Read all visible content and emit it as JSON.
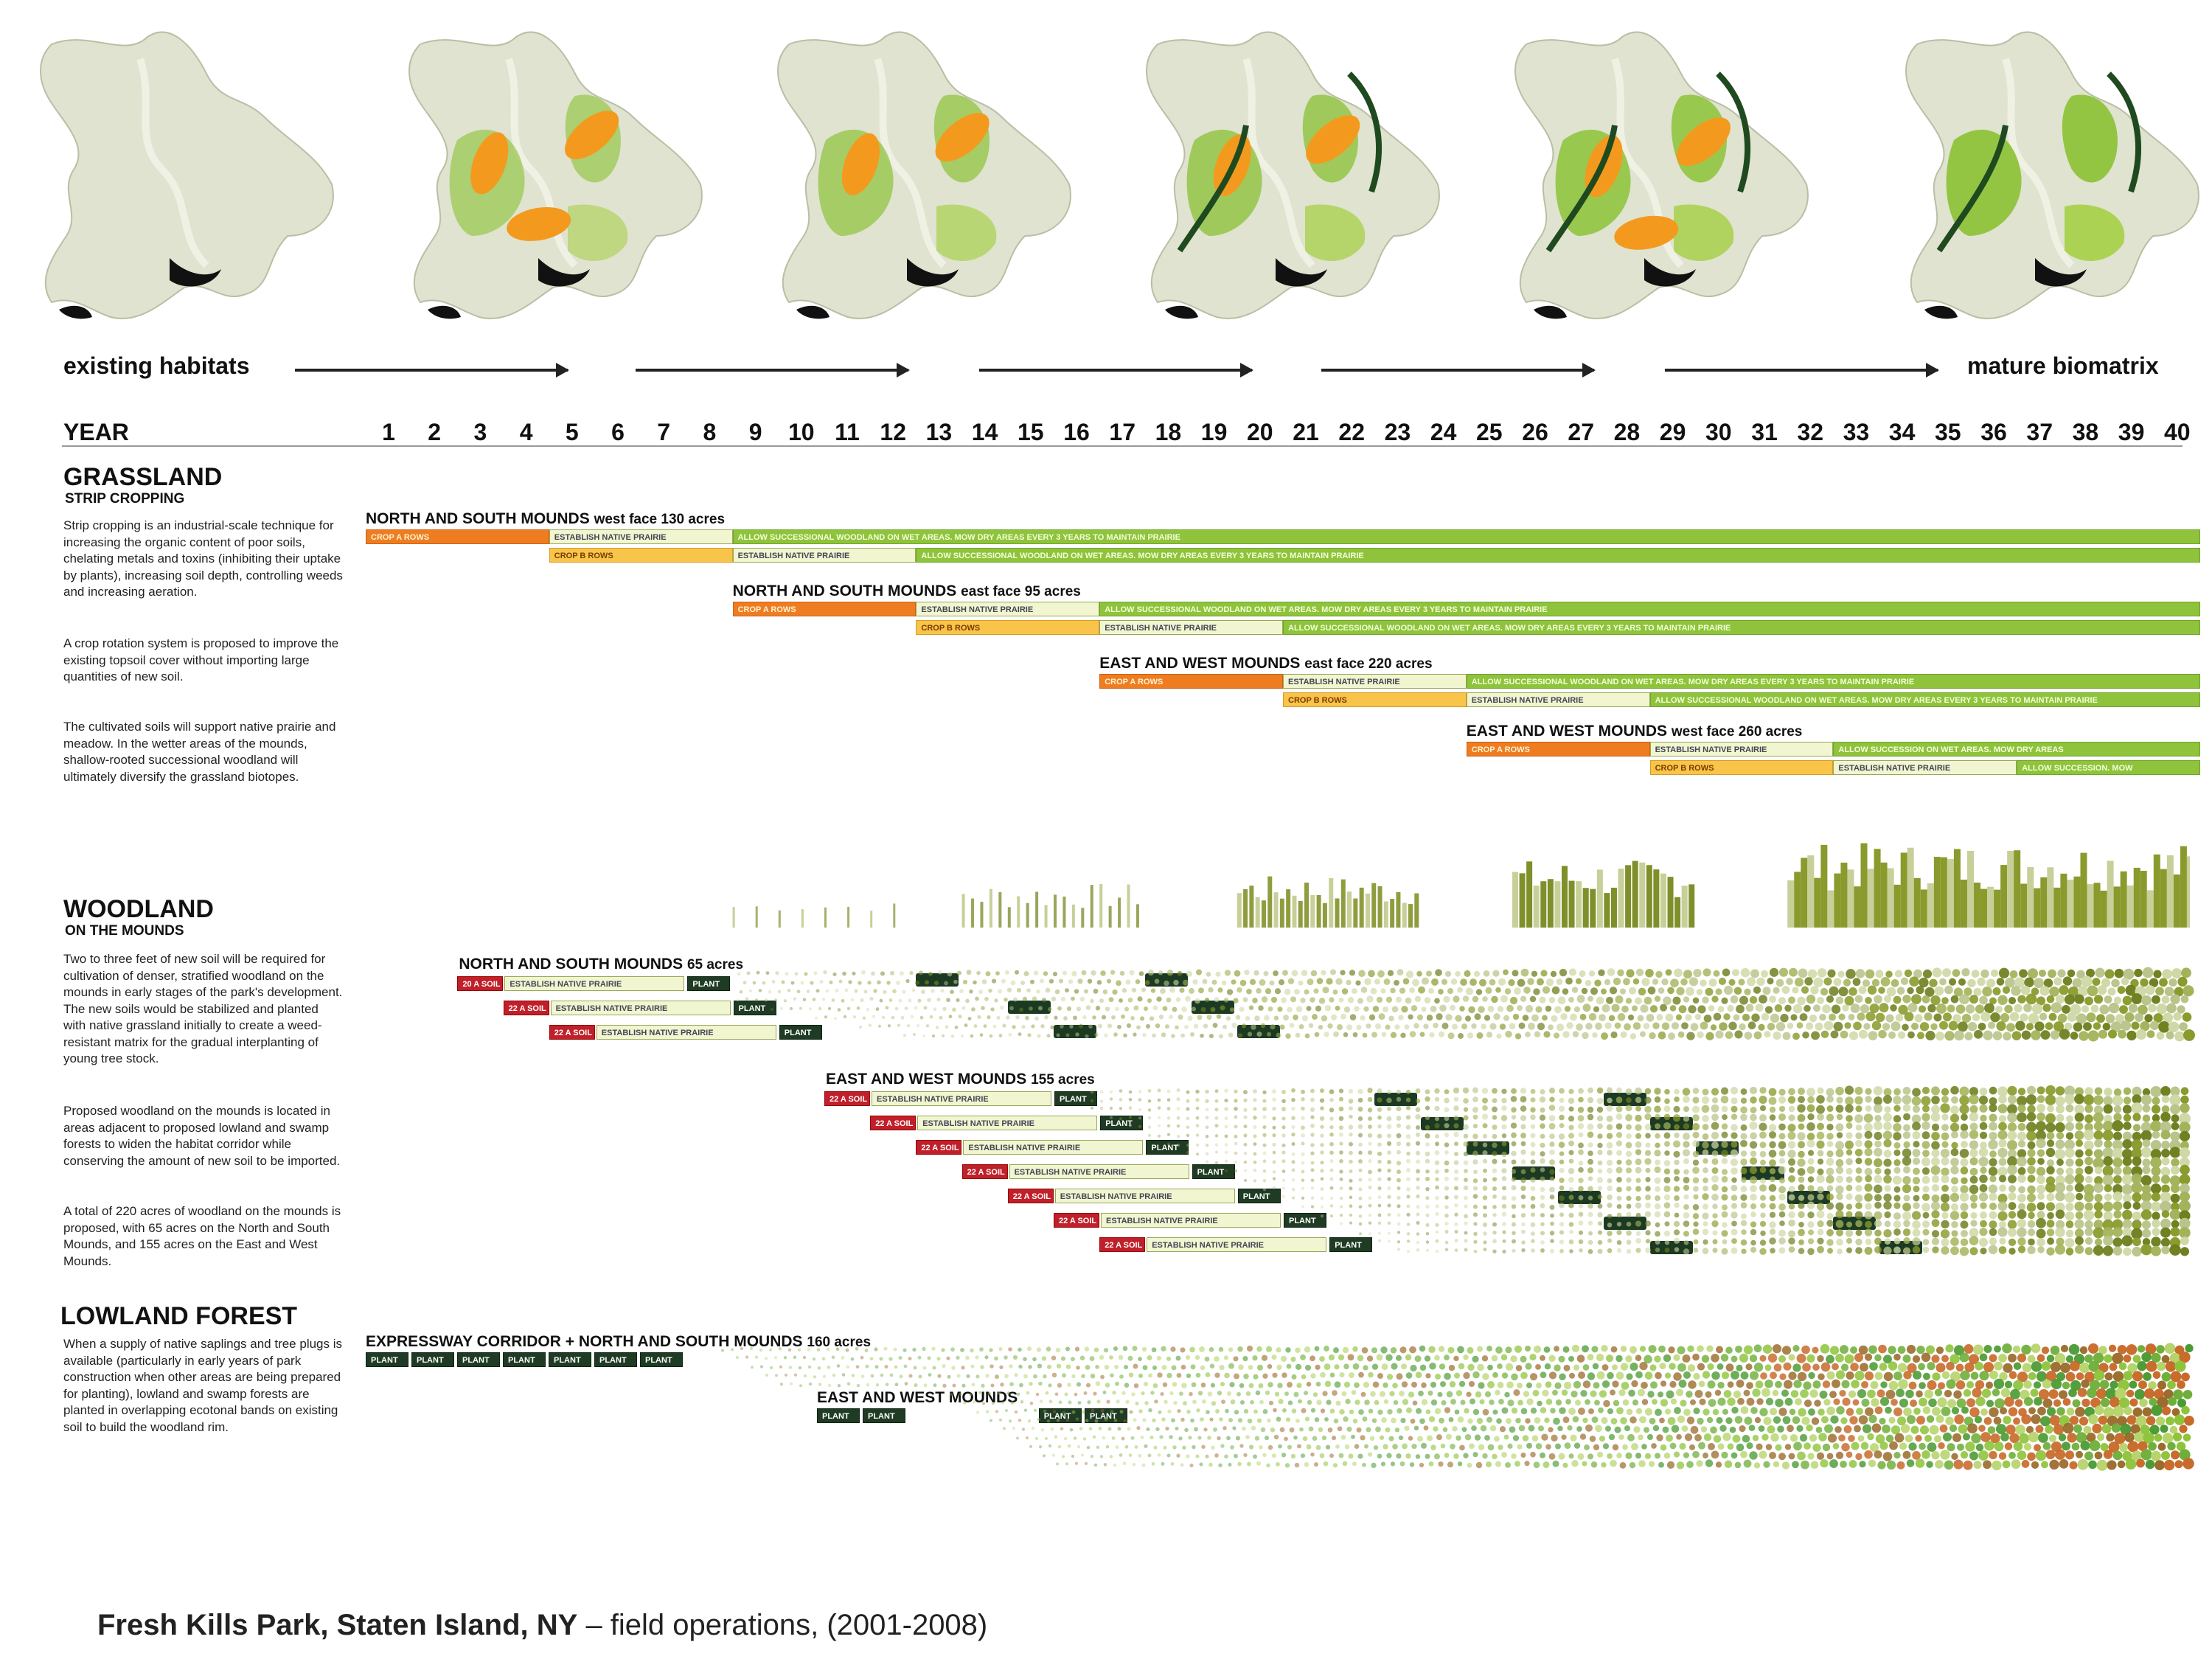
{
  "timeline": {
    "start_label": "existing habitats",
    "end_label": "mature biomatrix",
    "year_label": "YEAR",
    "years": [
      "1",
      "2",
      "3",
      "4",
      "5",
      "6",
      "7",
      "8",
      "9",
      "10",
      "11",
      "12",
      "13",
      "14",
      "15",
      "16",
      "17",
      "18",
      "19",
      "20",
      "21",
      "22",
      "23",
      "24",
      "25",
      "26",
      "27",
      "28",
      "29",
      "30",
      "31",
      "32",
      "33",
      "34",
      "35",
      "36",
      "37",
      "38",
      "39",
      "40"
    ]
  },
  "grassland": {
    "title": "GRASSLAND",
    "subtitle": "STRIP CROPPING",
    "paragraphs": [
      "Strip cropping is an industrial-scale technique for increasing the organic content of poor soils, chelating metals and toxins (inhibiting their uptake by plants), increasing soil depth, controlling weeds and increasing aeration.",
      "A crop rotation system is proposed to improve the existing topsoil cover without importing large quantities of new soil.",
      "The cultivated soils will support native prairie and meadow. In the wetter areas of the mounds, shallow-rooted successional woodland will ultimately diversify the grassland biotopes."
    ],
    "plans": [
      {
        "name": "NORTH AND SOUTH MOUNDS",
        "detail": "west face  130 acres",
        "rows": [
          [
            {
              "label": "CROP A ROWS",
              "kind": "orange",
              "from": 1,
              "to": 4
            },
            {
              "label": "ESTABLISH NATIVE PRAIRIE",
              "kind": "pale",
              "from": 5,
              "to": 8
            },
            {
              "label": "ALLOW SUCCESSIONAL WOODLAND ON WET AREAS.  MOW DRY AREAS EVERY 3 YEARS TO MAINTAIN PRAIRIE",
              "kind": "green",
              "from": 9,
              "to": 40
            }
          ],
          [
            {
              "label": "CROP B ROWS",
              "kind": "yellow",
              "from": 5,
              "to": 8
            },
            {
              "label": "ESTABLISH NATIVE PRAIRIE",
              "kind": "pale",
              "from": 9,
              "to": 12
            },
            {
              "label": "ALLOW SUCCESSIONAL WOODLAND ON WET AREAS.  MOW DRY AREAS EVERY 3 YEARS TO MAINTAIN PRAIRIE",
              "kind": "green",
              "from": 13,
              "to": 40
            }
          ]
        ]
      },
      {
        "name": "NORTH AND SOUTH MOUNDS",
        "detail": "east face  95 acres",
        "rows": [
          [
            {
              "label": "CROP A ROWS",
              "kind": "orange",
              "from": 9,
              "to": 12
            },
            {
              "label": "ESTABLISH NATIVE PRAIRIE",
              "kind": "pale",
              "from": 13,
              "to": 16
            },
            {
              "label": "ALLOW SUCCESSIONAL WOODLAND ON WET AREAS.  MOW DRY AREAS EVERY 3 YEARS TO MAINTAIN PRAIRIE",
              "kind": "green",
              "from": 17,
              "to": 40
            }
          ],
          [
            {
              "label": "CROP B ROWS",
              "kind": "yellow",
              "from": 13,
              "to": 16
            },
            {
              "label": "ESTABLISH NATIVE PRAIRIE",
              "kind": "pale",
              "from": 17,
              "to": 20
            },
            {
              "label": "ALLOW SUCCESSIONAL WOODLAND ON WET AREAS.  MOW DRY AREAS EVERY 3 YEARS TO MAINTAIN PRAIRIE",
              "kind": "green",
              "from": 21,
              "to": 40
            }
          ]
        ]
      },
      {
        "name": "EAST AND WEST MOUNDS",
        "detail": "east face  220 acres",
        "rows": [
          [
            {
              "label": "CROP A ROWS",
              "kind": "orange",
              "from": 17,
              "to": 20
            },
            {
              "label": "ESTABLISH NATIVE PRAIRIE",
              "kind": "pale",
              "from": 21,
              "to": 24
            },
            {
              "label": "ALLOW SUCCESSIONAL WOODLAND ON WET AREAS.  MOW DRY AREAS EVERY 3 YEARS TO MAINTAIN PRAIRIE",
              "kind": "green",
              "from": 25,
              "to": 40
            }
          ],
          [
            {
              "label": "CROP B ROWS",
              "kind": "yellow",
              "from": 21,
              "to": 24
            },
            {
              "label": "ESTABLISH NATIVE PRAIRIE",
              "kind": "pale",
              "from": 25,
              "to": 28
            },
            {
              "label": "ALLOW SUCCESSIONAL WOODLAND ON WET AREAS.  MOW DRY AREAS EVERY 3 YEARS TO MAINTAIN PRAIRIE",
              "kind": "green",
              "from": 29,
              "to": 40
            }
          ]
        ]
      },
      {
        "name": "EAST AND WEST MOUNDS",
        "detail": "west face  260 acres",
        "rows": [
          [
            {
              "label": "CROP A ROWS",
              "kind": "orange",
              "from": 25,
              "to": 28
            },
            {
              "label": "ESTABLISH NATIVE PRAIRIE",
              "kind": "pale",
              "from": 29,
              "to": 32
            },
            {
              "label": "ALLOW SUCCESSION ON WET AREAS.  MOW DRY AREAS",
              "kind": "green",
              "from": 33,
              "to": 40
            }
          ],
          [
            {
              "label": "CROP B ROWS",
              "kind": "yellow",
              "from": 29,
              "to": 32
            },
            {
              "label": "ESTABLISH NATIVE PRAIRIE",
              "kind": "pale",
              "from": 33,
              "to": 36
            },
            {
              "label": "ALLOW SUCCESSION.  MOW",
              "kind": "green",
              "from": 37,
              "to": 40
            }
          ]
        ]
      }
    ]
  },
  "woodland": {
    "title": "WOODLAND",
    "subtitle": "ON THE MOUNDS",
    "paragraphs": [
      "Two to three feet of new soil will be required for cultivation of denser, stratified woodland on the mounds in early stages of the park's development. The new soils would be stabilized and planted with native grassland initially to create a weed-resistant matrix for the gradual interplanting of young tree stock.",
      "Proposed woodland on the mounds is located in areas adjacent to proposed lowland and swamp forests to widen the habitat corridor while conserving the amount of new soil to be imported.",
      "A total of 220 acres of woodland on the mounds is proposed, with 65 acres on the North and South Mounds, and 155 acres on the East and West Mounds."
    ],
    "plans": [
      {
        "name": "NORTH AND SOUTH MOUNDS",
        "detail": "65 acres",
        "rows": [
          {
            "soil": "20 A SOIL",
            "prairie": "ESTABLISH NATIVE PRAIRIE",
            "plant": "PLANT",
            "start": 3
          },
          {
            "soil": "22 A SOIL",
            "prairie": "ESTABLISH NATIVE PRAIRIE",
            "plant": "PLANT",
            "start": 4
          },
          {
            "soil": "22 A SOIL",
            "prairie": "ESTABLISH NATIVE PRAIRIE",
            "plant": "PLANT",
            "start": 5
          }
        ]
      },
      {
        "name": "EAST AND WEST MOUNDS",
        "detail": "155 acres",
        "rows": [
          {
            "soil": "22 A SOIL",
            "prairie": "ESTABLISH NATIVE PRAIRIE",
            "plant": "PLANT",
            "start": 11
          },
          {
            "soil": "22 A SOIL",
            "prairie": "ESTABLISH NATIVE PRAIRIE",
            "plant": "PLANT",
            "start": 12
          },
          {
            "soil": "22 A SOIL",
            "prairie": "ESTABLISH NATIVE PRAIRIE",
            "plant": "PLANT",
            "start": 13
          },
          {
            "soil": "22 A SOIL",
            "prairie": "ESTABLISH NATIVE PRAIRIE",
            "plant": "PLANT",
            "start": 14
          },
          {
            "soil": "22 A SOIL",
            "prairie": "ESTABLISH NATIVE PRAIRIE",
            "plant": "PLANT",
            "start": 15
          },
          {
            "soil": "22 A SOIL",
            "prairie": "ESTABLISH NATIVE PRAIRIE",
            "plant": "PLANT",
            "start": 16
          },
          {
            "soil": "22 A SOIL",
            "prairie": "ESTABLISH NATIVE PRAIRIE",
            "plant": "PLANT",
            "start": 17
          }
        ]
      }
    ]
  },
  "lowland": {
    "title": "LOWLAND FOREST",
    "paragraph": "When a supply of native saplings and tree plugs is available (particularly in early years of park construction when other areas are being prepared for planting), lowland and swamp forests are planted in overlapping ecotonal bands on existing soil to build the woodland rim.",
    "plans": [
      {
        "name": "EXPRESSWAY CORRIDOR + NORTH AND SOUTH MOUNDS",
        "detail": "160 acres",
        "plant_label": "PLANT",
        "plant_count": 7
      },
      {
        "name": "EAST AND WEST MOUNDS",
        "detail": "",
        "plant_label": "PLANT"
      }
    ]
  },
  "caption": {
    "bold": "Fresh Kills Park, Staten Island, NY",
    "rest": " – field operations, (2001-2008)"
  },
  "colors": {
    "orange": "#ee7d22",
    "yellow": "#f8c54a",
    "pale": "#f1f6d0",
    "green": "#8ec33b",
    "red": "#c0202a",
    "dark": "#1f3b24",
    "olive": "#8a9a2c",
    "sage": "#b8c48a"
  }
}
